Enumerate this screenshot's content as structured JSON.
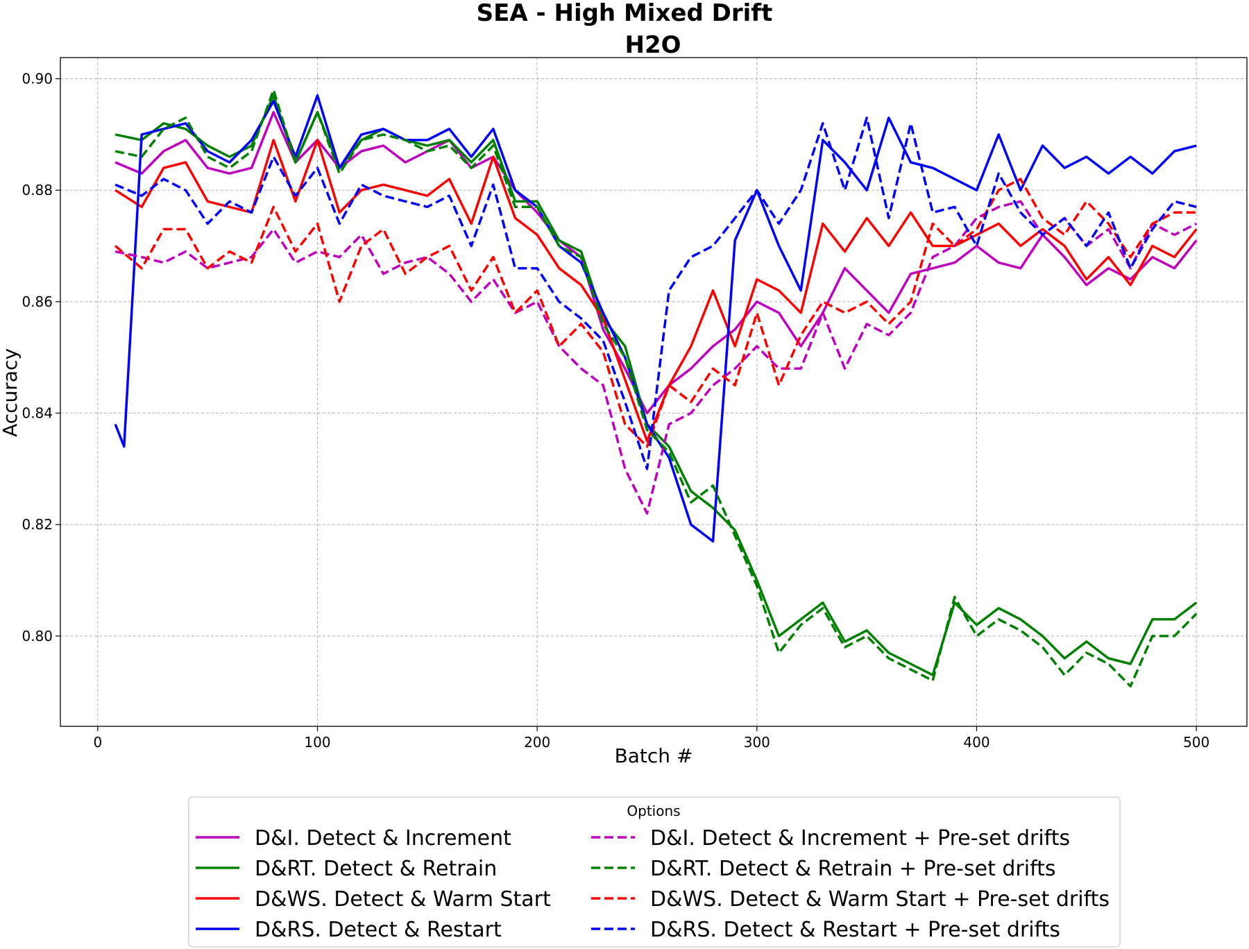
{
  "chart_data": {
    "type": "line",
    "title": "SEA - High Mixed Drift",
    "subtitle": "H2O",
    "xlabel": "Batch #",
    "ylabel": "Accuracy",
    "xlim": [
      -17,
      523
    ],
    "ylim": [
      0.7838,
      0.9038
    ],
    "xticks": [
      0,
      100,
      200,
      300,
      400,
      500
    ],
    "xtick_labels": [
      "0",
      "100",
      "200",
      "300",
      "400",
      "500"
    ],
    "yticks": [
      0.8,
      0.82,
      0.84,
      0.86,
      0.88,
      0.9
    ],
    "ytick_labels": [
      "0.80",
      "0.82",
      "0.84",
      "0.86",
      "0.88",
      "0.90"
    ],
    "grid": true,
    "legend": {
      "title": "Options",
      "placement": "bottom-center",
      "columns": 2
    },
    "series": [
      {
        "name": "D&I. Detect & Increment",
        "color": "#bf00bf",
        "dash": "solid",
        "x": [
          8,
          20,
          30,
          40,
          50,
          60,
          70,
          80,
          90,
          100,
          110,
          120,
          130,
          140,
          150,
          160,
          170,
          180,
          190,
          200,
          210,
          220,
          230,
          240,
          250,
          260,
          270,
          280,
          290,
          300,
          310,
          320,
          330,
          340,
          350,
          360,
          370,
          380,
          390,
          400,
          410,
          420,
          430,
          440,
          450,
          460,
          470,
          480,
          490,
          500
        ],
        "y": [
          0.885,
          0.883,
          0.887,
          0.889,
          0.884,
          0.883,
          0.884,
          0.894,
          0.885,
          0.889,
          0.884,
          0.887,
          0.888,
          0.885,
          0.887,
          0.889,
          0.884,
          0.886,
          0.88,
          0.876,
          0.871,
          0.868,
          0.855,
          0.848,
          0.84,
          0.845,
          0.848,
          0.852,
          0.855,
          0.86,
          0.858,
          0.852,
          0.858,
          0.866,
          0.862,
          0.858,
          0.865,
          0.866,
          0.867,
          0.87,
          0.867,
          0.866,
          0.872,
          0.868,
          0.863,
          0.866,
          0.864,
          0.868,
          0.866,
          0.871
        ]
      },
      {
        "name": "D&RT. Detect & Retrain",
        "color": "#008000",
        "dash": "solid",
        "x": [
          8,
          20,
          30,
          40,
          50,
          60,
          70,
          80,
          90,
          100,
          110,
          120,
          130,
          140,
          150,
          160,
          170,
          180,
          190,
          200,
          210,
          220,
          230,
          240,
          250,
          260,
          270,
          280,
          290,
          300,
          310,
          320,
          330,
          340,
          350,
          360,
          370,
          380,
          390,
          400,
          410,
          420,
          430,
          440,
          450,
          460,
          470,
          480,
          490,
          500
        ],
        "y": [
          0.89,
          0.889,
          0.892,
          0.891,
          0.888,
          0.886,
          0.888,
          0.897,
          0.885,
          0.894,
          0.884,
          0.889,
          0.891,
          0.889,
          0.888,
          0.889,
          0.885,
          0.889,
          0.878,
          0.878,
          0.871,
          0.869,
          0.857,
          0.852,
          0.838,
          0.834,
          0.826,
          0.823,
          0.819,
          0.81,
          0.8,
          0.803,
          0.806,
          0.799,
          0.801,
          0.797,
          0.795,
          0.793,
          0.806,
          0.802,
          0.805,
          0.803,
          0.8,
          0.796,
          0.799,
          0.796,
          0.795,
          0.803,
          0.803,
          0.806
        ]
      },
      {
        "name": "D&WS. Detect & Warm Start",
        "color": "#ff0000",
        "dash": "solid",
        "x": [
          8,
          20,
          30,
          40,
          50,
          60,
          70,
          80,
          90,
          100,
          110,
          120,
          130,
          140,
          150,
          160,
          170,
          180,
          190,
          200,
          210,
          220,
          230,
          240,
          250,
          260,
          270,
          280,
          290,
          300,
          310,
          320,
          330,
          340,
          350,
          360,
          370,
          380,
          390,
          400,
          410,
          420,
          430,
          440,
          450,
          460,
          470,
          480,
          490,
          500
        ],
        "y": [
          0.88,
          0.877,
          0.884,
          0.885,
          0.878,
          0.877,
          0.876,
          0.889,
          0.878,
          0.889,
          0.876,
          0.88,
          0.881,
          0.88,
          0.879,
          0.882,
          0.874,
          0.886,
          0.875,
          0.872,
          0.866,
          0.863,
          0.857,
          0.846,
          0.835,
          0.845,
          0.852,
          0.862,
          0.852,
          0.864,
          0.862,
          0.858,
          0.874,
          0.869,
          0.875,
          0.87,
          0.876,
          0.87,
          0.87,
          0.872,
          0.874,
          0.87,
          0.873,
          0.87,
          0.864,
          0.868,
          0.863,
          0.87,
          0.868,
          0.873
        ]
      },
      {
        "name": "D&RS. Detect & Restart",
        "color": "#0000ff",
        "dash": "solid",
        "x": [
          8,
          12,
          20,
          30,
          40,
          50,
          60,
          70,
          80,
          90,
          100,
          110,
          120,
          130,
          140,
          150,
          160,
          170,
          180,
          190,
          200,
          210,
          220,
          230,
          240,
          250,
          260,
          270,
          280,
          290,
          300,
          310,
          320,
          330,
          340,
          350,
          360,
          370,
          380,
          390,
          400,
          410,
          420,
          430,
          440,
          450,
          460,
          470,
          480,
          490,
          500
        ],
        "y": [
          0.838,
          0.834,
          0.89,
          0.891,
          0.892,
          0.887,
          0.885,
          0.889,
          0.896,
          0.886,
          0.897,
          0.884,
          0.89,
          0.891,
          0.889,
          0.889,
          0.891,
          0.886,
          0.891,
          0.88,
          0.877,
          0.87,
          0.867,
          0.858,
          0.85,
          0.838,
          0.832,
          0.82,
          0.817,
          0.871,
          0.88,
          0.87,
          0.862,
          0.889,
          0.885,
          0.88,
          0.893,
          0.885,
          0.884,
          0.882,
          0.88,
          0.89,
          0.88,
          0.888,
          0.884,
          0.886,
          0.883,
          0.886,
          0.883,
          0.887,
          0.888
        ]
      },
      {
        "name": "D&I. Detect & Increment + Pre-set drifts",
        "color": "#bf00bf",
        "dash": "dashed",
        "x": [
          8,
          20,
          30,
          40,
          50,
          60,
          70,
          80,
          90,
          100,
          110,
          120,
          130,
          140,
          150,
          160,
          170,
          180,
          190,
          200,
          210,
          220,
          230,
          240,
          250,
          260,
          270,
          280,
          290,
          300,
          310,
          320,
          330,
          340,
          350,
          360,
          370,
          380,
          390,
          400,
          410,
          420,
          430,
          440,
          450,
          460,
          470,
          480,
          490,
          500
        ],
        "y": [
          0.869,
          0.868,
          0.867,
          0.869,
          0.866,
          0.867,
          0.868,
          0.873,
          0.867,
          0.869,
          0.868,
          0.872,
          0.865,
          0.867,
          0.868,
          0.865,
          0.86,
          0.864,
          0.858,
          0.86,
          0.852,
          0.848,
          0.845,
          0.83,
          0.822,
          0.838,
          0.84,
          0.845,
          0.848,
          0.852,
          0.848,
          0.848,
          0.858,
          0.848,
          0.856,
          0.854,
          0.858,
          0.868,
          0.87,
          0.875,
          0.877,
          0.878,
          0.872,
          0.875,
          0.87,
          0.873,
          0.866,
          0.874,
          0.872,
          0.874
        ]
      },
      {
        "name": "D&RT. Detect & Retrain + Pre-set drifts",
        "color": "#008000",
        "dash": "dashed",
        "x": [
          8,
          20,
          30,
          40,
          50,
          60,
          70,
          80,
          90,
          100,
          110,
          120,
          130,
          140,
          150,
          160,
          170,
          180,
          190,
          200,
          210,
          220,
          230,
          240,
          250,
          260,
          270,
          280,
          290,
          300,
          310,
          320,
          330,
          340,
          350,
          360,
          370,
          380,
          390,
          400,
          410,
          420,
          430,
          440,
          450,
          460,
          470,
          480,
          490,
          500
        ],
        "y": [
          0.887,
          0.886,
          0.891,
          0.893,
          0.886,
          0.884,
          0.887,
          0.898,
          0.885,
          0.894,
          0.883,
          0.889,
          0.89,
          0.889,
          0.887,
          0.888,
          0.884,
          0.888,
          0.877,
          0.877,
          0.87,
          0.868,
          0.856,
          0.85,
          0.837,
          0.833,
          0.824,
          0.827,
          0.818,
          0.809,
          0.797,
          0.802,
          0.805,
          0.798,
          0.8,
          0.796,
          0.794,
          0.792,
          0.807,
          0.8,
          0.803,
          0.801,
          0.798,
          0.793,
          0.797,
          0.795,
          0.791,
          0.8,
          0.8,
          0.804
        ]
      },
      {
        "name": "D&WS. Detect & Warm Start + Pre-set drifts",
        "color": "#ff0000",
        "dash": "dashed",
        "x": [
          8,
          20,
          30,
          40,
          50,
          60,
          70,
          80,
          90,
          100,
          110,
          120,
          130,
          140,
          150,
          160,
          170,
          180,
          190,
          200,
          210,
          220,
          230,
          240,
          250,
          260,
          270,
          280,
          290,
          300,
          310,
          320,
          330,
          340,
          350,
          360,
          370,
          380,
          390,
          400,
          410,
          420,
          430,
          440,
          450,
          460,
          470,
          480,
          490,
          500
        ],
        "y": [
          0.87,
          0.866,
          0.873,
          0.873,
          0.866,
          0.869,
          0.867,
          0.877,
          0.869,
          0.874,
          0.86,
          0.87,
          0.873,
          0.865,
          0.868,
          0.87,
          0.862,
          0.868,
          0.858,
          0.862,
          0.852,
          0.856,
          0.851,
          0.838,
          0.834,
          0.845,
          0.842,
          0.848,
          0.845,
          0.858,
          0.845,
          0.854,
          0.86,
          0.858,
          0.86,
          0.856,
          0.86,
          0.874,
          0.87,
          0.873,
          0.88,
          0.882,
          0.875,
          0.872,
          0.878,
          0.874,
          0.868,
          0.874,
          0.876,
          0.876
        ]
      },
      {
        "name": "D&RS. Detect & Restart + Pre-set drifts",
        "color": "#0000ff",
        "dash": "dashed",
        "x": [
          8,
          20,
          30,
          40,
          50,
          60,
          70,
          80,
          90,
          100,
          110,
          120,
          130,
          140,
          150,
          160,
          170,
          180,
          190,
          200,
          210,
          220,
          230,
          240,
          250,
          260,
          270,
          280,
          290,
          300,
          310,
          320,
          330,
          340,
          350,
          360,
          370,
          380,
          390,
          400,
          410,
          420,
          430,
          440,
          450,
          460,
          470,
          480,
          490,
          500
        ],
        "y": [
          0.881,
          0.879,
          0.882,
          0.88,
          0.874,
          0.878,
          0.876,
          0.886,
          0.879,
          0.884,
          0.874,
          0.881,
          0.879,
          0.878,
          0.877,
          0.879,
          0.87,
          0.881,
          0.866,
          0.866,
          0.86,
          0.857,
          0.853,
          0.842,
          0.83,
          0.862,
          0.868,
          0.87,
          0.875,
          0.88,
          0.874,
          0.88,
          0.892,
          0.88,
          0.893,
          0.875,
          0.892,
          0.876,
          0.877,
          0.87,
          0.883,
          0.876,
          0.872,
          0.875,
          0.87,
          0.876,
          0.866,
          0.873,
          0.878,
          0.877
        ]
      }
    ]
  }
}
